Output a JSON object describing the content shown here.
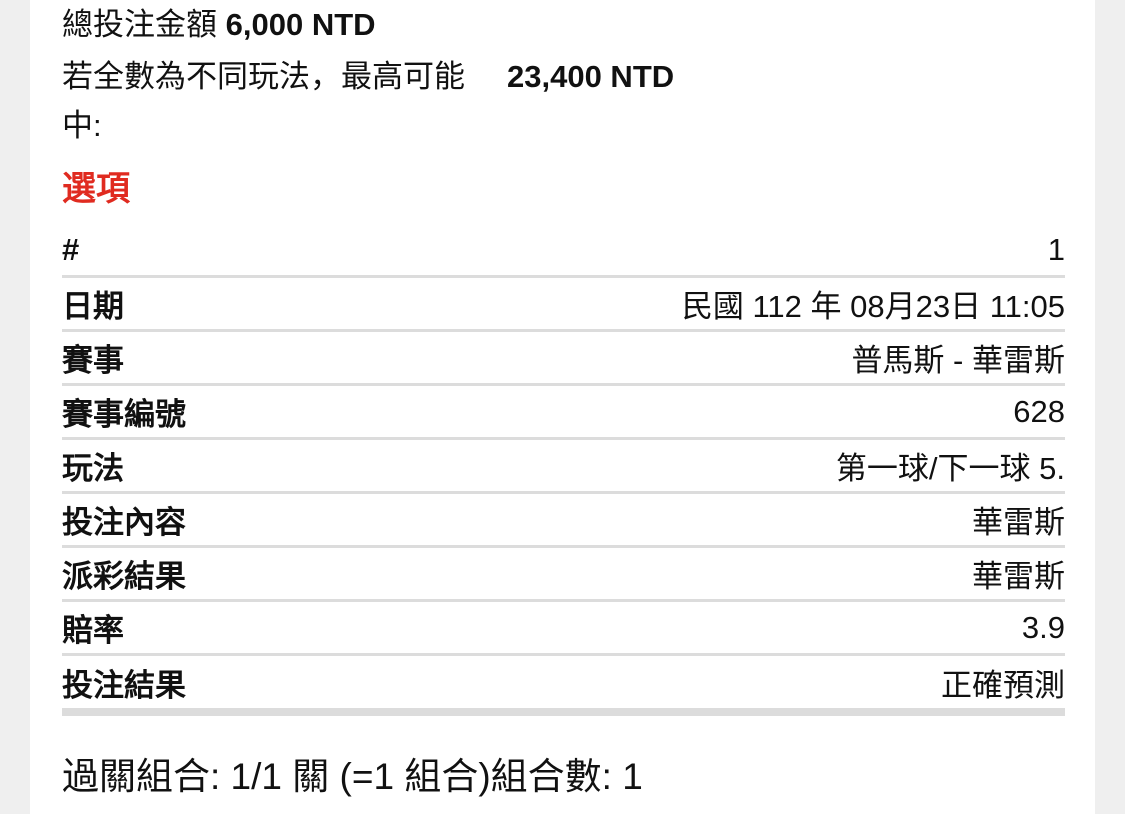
{
  "summary": {
    "total_label": "總投注金額",
    "total_value": "6,000 NTD",
    "max_label_1": "若全數為不同玩法，最高可能",
    "max_label_2": "中:",
    "max_value": "23,400 NTD"
  },
  "section_title": "選項",
  "section_color": "#e02b20",
  "rows": [
    {
      "key": "#",
      "value": "1"
    },
    {
      "key": "日期",
      "value": "民國 112 年 08月23日 11:05"
    },
    {
      "key": "賽事",
      "value": "普馬斯 - 華雷斯"
    },
    {
      "key": "賽事編號",
      "value": "628"
    },
    {
      "key": "玩法",
      "value": "第一球/下一球 5."
    },
    {
      "key": "投注內容",
      "value": "華雷斯"
    },
    {
      "key": "派彩結果",
      "value": "華雷斯"
    },
    {
      "key": "賠率",
      "value": "3.9"
    },
    {
      "key": "投注結果",
      "value": "正確預測"
    }
  ],
  "parlay": "過關組合: 1/1 關 (=1 組合)組合數: 1"
}
